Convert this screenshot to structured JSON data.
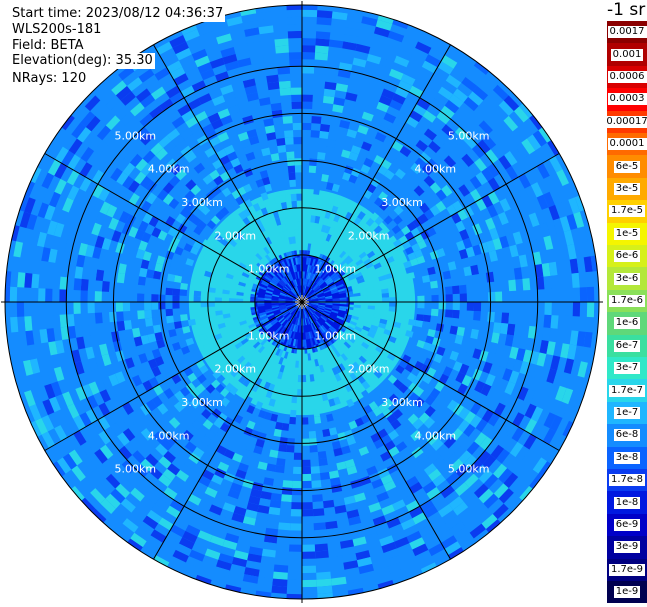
{
  "header": {
    "start_time": "Start time: 2023/08/12 04:36:37",
    "instrument": "WLS200s-181",
    "field": "Field: BETA",
    "elevation": "Elevation(deg): 35.30",
    "nrays": "NRays: 120"
  },
  "colorbar": {
    "units": "-1 sr",
    "labels": [
      "0.0017",
      "0.001",
      "0.0006",
      "0.0003",
      "0.00017",
      "0.0001",
      "6e-5",
      "3e-5",
      "1.7e-5",
      "1e-5",
      "6e-6",
      "3e-6",
      "1.7e-6",
      "1e-6",
      "6e-7",
      "3e-7",
      "1.7e-7",
      "1e-7",
      "6e-8",
      "3e-8",
      "1.7e-8",
      "1e-8",
      "6e-9",
      "3e-9",
      "1.7e-9",
      "1e-9"
    ],
    "colors": [
      "#8b0000",
      "#b00000",
      "#d80000",
      "#ff0000",
      "#ff3a00",
      "#ff6a00",
      "#ff8c00",
      "#ffaa00",
      "#ffd000",
      "#f5f500",
      "#d6f01a",
      "#b4e83a",
      "#8ae05a",
      "#5fd87a",
      "#3adfa0",
      "#30e8c8",
      "#29d6ea",
      "#1fb6ff",
      "#148cff",
      "#0a64ff",
      "#0a3cf0",
      "#0018e0",
      "#0000c8",
      "#0000a0",
      "#000080",
      "#000050"
    ]
  },
  "chart_data": {
    "type": "heatmap",
    "title": "",
    "field": "BETA",
    "units": "sr-1",
    "elevation_deg": 35.3,
    "nrays": 120,
    "range_rings_km": [
      1,
      2,
      3,
      4,
      5
    ],
    "range_ring_labels": [
      "1.00km",
      "2.00km",
      "3.00km",
      "4.00km",
      "5.00km"
    ],
    "max_range_km": 6.3,
    "azimuth_lines_deg": [
      0,
      30,
      60,
      90,
      120,
      150,
      180,
      210,
      240,
      270,
      300,
      330
    ],
    "colorbar_levels": [
      "0.0017",
      "0.001",
      "0.0006",
      "0.0003",
      "0.00017",
      "0.0001",
      "6e-5",
      "3e-5",
      "1.7e-5",
      "1e-5",
      "6e-6",
      "3e-6",
      "1.7e-6",
      "1e-6",
      "6e-7",
      "3e-7",
      "1.7e-7",
      "1e-7",
      "6e-8",
      "3e-8",
      "1.7e-8",
      "1e-8",
      "6e-9",
      "3e-9",
      "1.7e-9",
      "1e-9"
    ],
    "range_zones": [
      {
        "from_km": 0.0,
        "to_km": 1.0,
        "typical_value": "1e-8"
      },
      {
        "from_km": 1.0,
        "to_km": 2.4,
        "typical_value": "1.7e-7"
      },
      {
        "from_km": 2.4,
        "to_km": 6.3,
        "typical_value": "6e-8"
      }
    ]
  }
}
